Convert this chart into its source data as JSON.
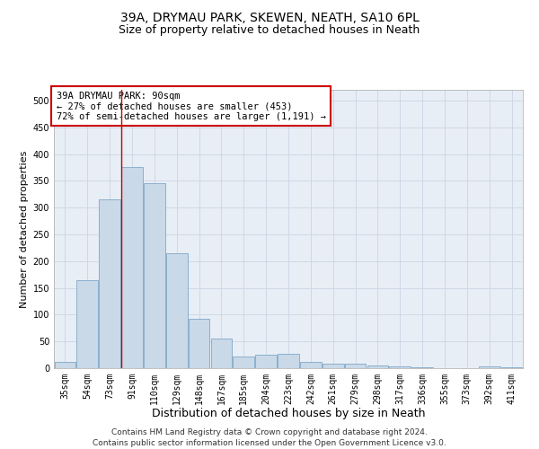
{
  "title1": "39A, DRYMAU PARK, SKEWEN, NEATH, SA10 6PL",
  "title2": "Size of property relative to detached houses in Neath",
  "xlabel": "Distribution of detached houses by size in Neath",
  "ylabel": "Number of detached properties",
  "categories": [
    "35sqm",
    "54sqm",
    "73sqm",
    "91sqm",
    "110sqm",
    "129sqm",
    "148sqm",
    "167sqm",
    "185sqm",
    "204sqm",
    "223sqm",
    "242sqm",
    "261sqm",
    "279sqm",
    "298sqm",
    "317sqm",
    "336sqm",
    "355sqm",
    "373sqm",
    "392sqm",
    "411sqm"
  ],
  "values": [
    12,
    165,
    315,
    375,
    345,
    215,
    93,
    55,
    22,
    25,
    27,
    12,
    8,
    8,
    5,
    3,
    2,
    0,
    0,
    3,
    2
  ],
  "bar_color": "#c9d9e8",
  "bar_edge_color": "#7fa8c8",
  "property_line_index": 3,
  "annotation_text": "39A DRYMAU PARK: 90sqm\n← 27% of detached houses are smaller (453)\n72% of semi-detached houses are larger (1,191) →",
  "annotation_box_color": "#ffffff",
  "annotation_box_edge_color": "#cc0000",
  "vline_color": "#cc0000",
  "grid_color": "#d0d8e8",
  "background_color": "#e8eef5",
  "ylim": [
    0,
    520
  ],
  "yticks": [
    0,
    50,
    100,
    150,
    200,
    250,
    300,
    350,
    400,
    450,
    500
  ],
  "footer_text": "Contains HM Land Registry data © Crown copyright and database right 2024.\nContains public sector information licensed under the Open Government Licence v3.0.",
  "title1_fontsize": 10,
  "title2_fontsize": 9,
  "xlabel_fontsize": 9,
  "ylabel_fontsize": 8,
  "tick_fontsize": 7,
  "annotation_fontsize": 7.5,
  "footer_fontsize": 6.5
}
